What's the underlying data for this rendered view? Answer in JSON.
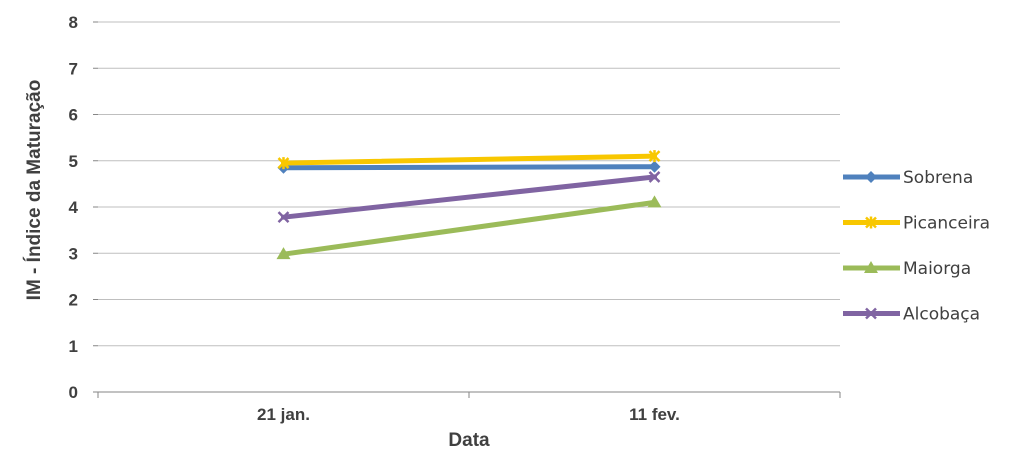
{
  "chart_data": {
    "type": "line",
    "title": "",
    "xlabel": "Data",
    "ylabel": "IM - Índice da Maturação",
    "categories": [
      "21 jan.",
      "11 fev."
    ],
    "ylim": [
      0,
      8
    ],
    "yticks": [
      "0",
      "1",
      "2",
      "3",
      "4",
      "5",
      "6",
      "7",
      "8"
    ],
    "grid": true,
    "legend_position": "right",
    "series": [
      {
        "name": "Sobrena",
        "values": [
          4.85,
          4.87
        ],
        "color": "#4f81bd",
        "marker": "diamond"
      },
      {
        "name": "Picanceira",
        "values": [
          4.95,
          5.1
        ],
        "color": "#f8c700",
        "marker": "asterisk"
      },
      {
        "name": "Maiorga",
        "values": [
          2.98,
          4.1
        ],
        "color": "#9bbb59",
        "marker": "triangle"
      },
      {
        "name": "Alcobaça",
        "values": [
          3.78,
          4.65
        ],
        "color": "#8064a2",
        "marker": "x"
      }
    ]
  }
}
